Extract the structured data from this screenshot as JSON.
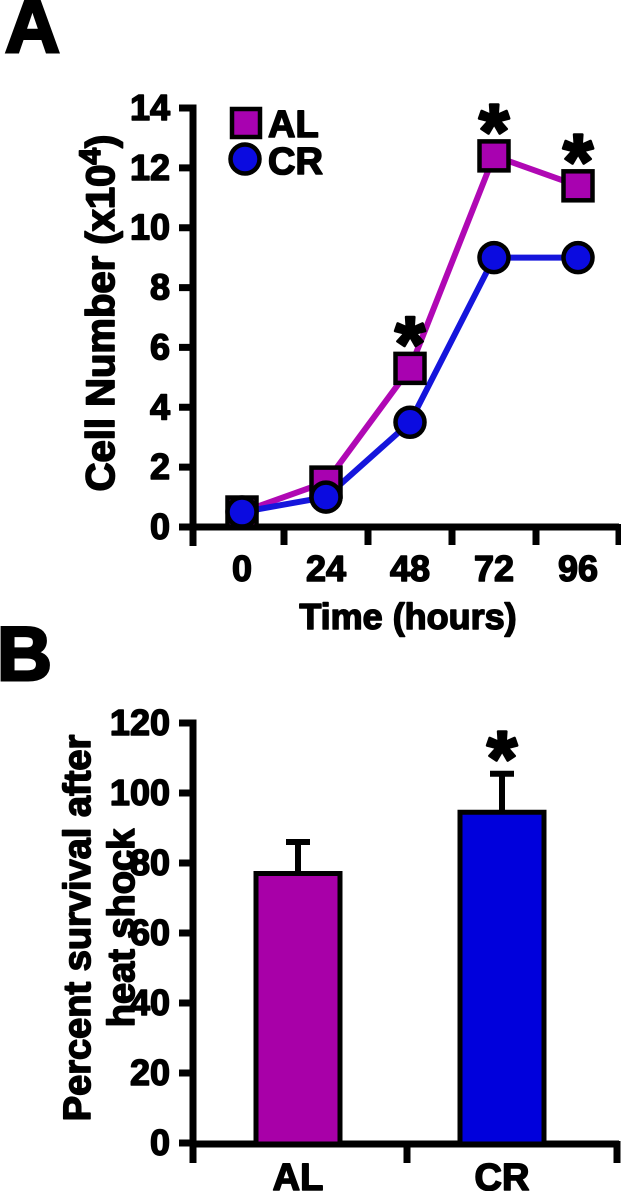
{
  "figure": {
    "background": "#ffffff",
    "panel_a": {
      "letter": "A"
    },
    "panel_b": {
      "letter": "B"
    }
  },
  "colors": {
    "axis": "#000000",
    "al_magenta_line": "#B008B4",
    "al_magenta_fill": "#A802B0",
    "al_magenta_bar": "#A800A8",
    "cr_blue_line": "#1515DC",
    "cr_blue_fill": "#0B0BE0",
    "cr_blue_bar": "#0000DC"
  },
  "chart_data": [
    {
      "type": "line",
      "panel": "A",
      "title": "",
      "xlabel": "Time (hours)",
      "ylabel": "Cell Number (x10⁴)",
      "x": [
        0,
        24,
        48,
        72,
        96
      ],
      "xtick_labels": [
        "0",
        "24",
        "48",
        "72",
        "96"
      ],
      "ylim": [
        0,
        14
      ],
      "yticks": [
        0,
        2,
        4,
        6,
        8,
        10,
        12,
        14
      ],
      "grid": false,
      "legend": {
        "position": "top-left",
        "entries": [
          "AL",
          "CR"
        ]
      },
      "series": [
        {
          "name": "AL",
          "marker": "square",
          "line_color": "#B008B4",
          "fill_color": "#A802B0",
          "values": [
            0.5,
            1.5,
            5.3,
            12.4,
            11.4
          ]
        },
        {
          "name": "CR",
          "marker": "circle",
          "line_color": "#1515DC",
          "fill_color": "#0B0BE0",
          "values": [
            0.5,
            1.0,
            3.5,
            9.0,
            9.0
          ]
        }
      ],
      "annotations": [
        {
          "text": "*",
          "series": "AL",
          "x": 48
        },
        {
          "text": "*",
          "series": "AL",
          "x": 72
        },
        {
          "text": "*",
          "series": "AL",
          "x": 96
        }
      ]
    },
    {
      "type": "bar",
      "panel": "B",
      "title": "",
      "xlabel": "",
      "ylabel": "Percent survival after heat shock",
      "ylabel_lines": [
        "Percent survival after",
        "heat shock"
      ],
      "categories": [
        "AL",
        "CR"
      ],
      "values": [
        77,
        94.5
      ],
      "error_plus": [
        9,
        11
      ],
      "bar_colors": [
        "#A800A8",
        "#0000DC"
      ],
      "ylim": [
        0,
        120
      ],
      "yticks": [
        0,
        20,
        40,
        60,
        80,
        100,
        120
      ],
      "grid": false,
      "annotations": [
        {
          "text": "*",
          "category": "CR"
        }
      ]
    }
  ]
}
